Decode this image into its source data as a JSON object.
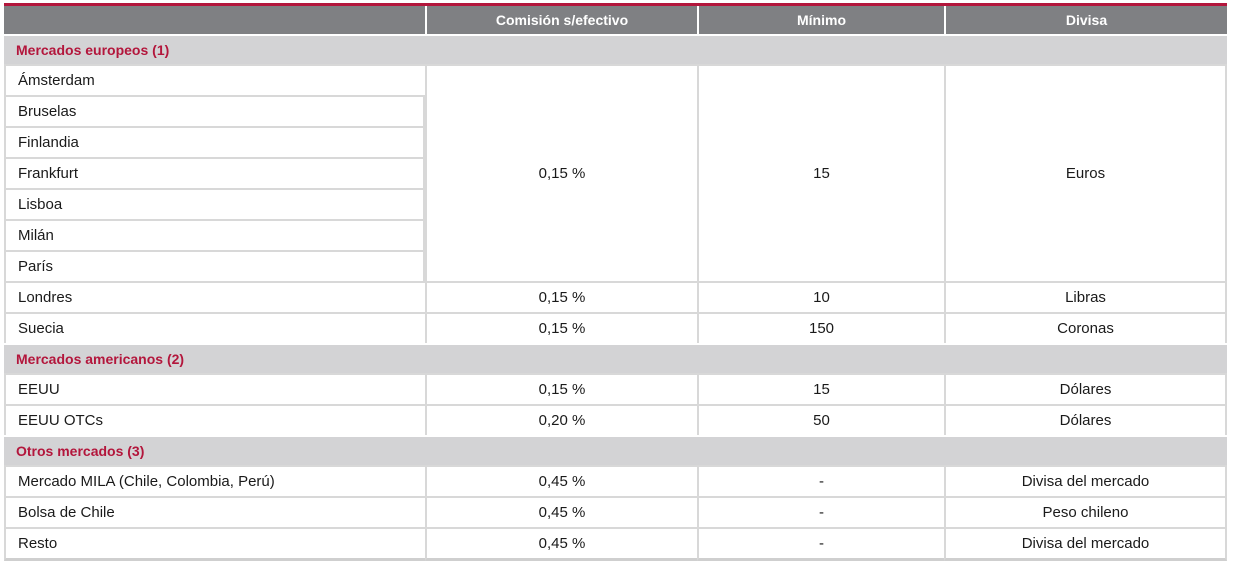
{
  "header": {
    "col1": "",
    "col2": "Comisión s/efectivo",
    "col3": "Mínimo",
    "col4": "Divisa"
  },
  "sections": [
    {
      "title": "Mercados europeos (1)",
      "group": {
        "markets": [
          "Ámsterdam",
          "Bruselas",
          "Finlandia",
          "Frankfurt",
          "Lisboa",
          "Milán",
          "París"
        ],
        "commission": "0,15 %",
        "minimum": "15",
        "currency": "Euros"
      },
      "rows": [
        {
          "market": "Londres",
          "commission": "0,15 %",
          "minimum": "10",
          "currency": "Libras"
        },
        {
          "market": "Suecia",
          "commission": "0,15 %",
          "minimum": "150",
          "currency": "Coronas"
        }
      ]
    },
    {
      "title": "Mercados americanos (2)",
      "rows": [
        {
          "market": "EEUU",
          "commission": "0,15 %",
          "minimum": "15",
          "currency": "Dólares"
        },
        {
          "market": "EEUU OTCs",
          "commission": "0,20 %",
          "minimum": "50",
          "currency": "Dólares"
        }
      ]
    },
    {
      "title": "Otros mercados (3)",
      "rows": [
        {
          "market": "Mercado MILA (Chile, Colombia, Perú)",
          "commission": "0,45 %",
          "minimum": "-",
          "currency": "Divisa del mercado"
        },
        {
          "market": "Bolsa de Chile",
          "commission": "0,45 %",
          "minimum": "-",
          "currency": "Peso chileno"
        },
        {
          "market": "Resto",
          "commission": "0,45 %",
          "minimum": "-",
          "currency": "Divisa del mercado"
        }
      ]
    }
  ]
}
